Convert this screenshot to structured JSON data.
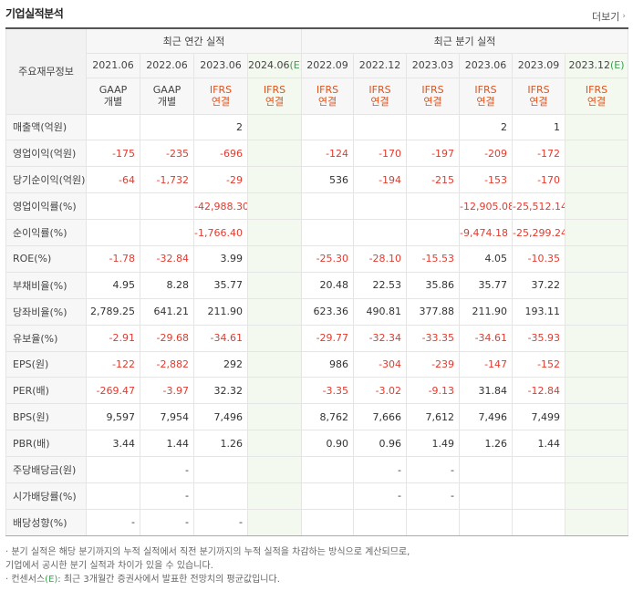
{
  "header": {
    "title": "기업실적분석",
    "more_label": "더보기"
  },
  "table": {
    "label_header": "주요재무정보",
    "annual_group": "최근 연간 실적",
    "quarter_group": "최근 분기 실적",
    "annual_years": [
      "2021.06",
      "2022.06",
      "2023.06",
      "2024.06"
    ],
    "quarter_years": [
      "2022.09",
      "2022.12",
      "2023.03",
      "2023.06",
      "2023.09",
      "2023.12"
    ],
    "estimate_mark": "(E)",
    "annual_acc": [
      [
        "GAAP",
        "개별"
      ],
      [
        "GAAP",
        "개별"
      ],
      [
        "IFRS",
        "연결"
      ],
      [
        "IFRS",
        "연결"
      ]
    ],
    "quarter_acc": [
      [
        "IFRS",
        "연결"
      ],
      [
        "IFRS",
        "연결"
      ],
      [
        "IFRS",
        "연결"
      ],
      [
        "IFRS",
        "연결"
      ],
      [
        "IFRS",
        "연결"
      ],
      [
        "IFRS",
        "연결"
      ]
    ],
    "rows": [
      {
        "label": "매출액(억원)",
        "values": [
          "",
          "",
          "2",
          "",
          "",
          "",
          "",
          "2",
          "1",
          ""
        ]
      },
      {
        "label": "영업이익(억원)",
        "values": [
          "-175",
          "-235",
          "-696",
          "",
          "-124",
          "-170",
          "-197",
          "-209",
          "-172",
          ""
        ]
      },
      {
        "label": "당기순이익(억원)",
        "values": [
          "-64",
          "-1,732",
          "-29",
          "",
          "536",
          "-194",
          "-215",
          "-153",
          "-170",
          ""
        ]
      },
      {
        "label": "영업이익률(%)",
        "values": [
          "",
          "",
          "-42,988.30",
          "",
          "",
          "",
          "",
          "-12,905.08",
          "-25,512.14",
          ""
        ]
      },
      {
        "label": "순이익률(%)",
        "values": [
          "",
          "",
          "-1,766.40",
          "",
          "",
          "",
          "",
          "-9,474.18",
          "-25,299.24",
          ""
        ]
      },
      {
        "label": "ROE(%)",
        "values": [
          "-1.78",
          "-32.84",
          "3.99",
          "",
          "-25.30",
          "-28.10",
          "-15.53",
          "4.05",
          "-10.35",
          ""
        ]
      },
      {
        "label": "부채비율(%)",
        "values": [
          "4.95",
          "8.28",
          "35.77",
          "",
          "20.48",
          "22.53",
          "35.86",
          "35.77",
          "37.22",
          ""
        ]
      },
      {
        "label": "당좌비율(%)",
        "values": [
          "2,789.25",
          "641.21",
          "211.90",
          "",
          "623.36",
          "490.81",
          "377.88",
          "211.90",
          "193.11",
          ""
        ]
      },
      {
        "label": "유보율(%)",
        "values": [
          "-2.91",
          "-29.68",
          "-34.61",
          "",
          "-29.77",
          "-32.34",
          "-33.35",
          "-34.61",
          "-35.93",
          ""
        ]
      },
      {
        "label": "EPS(원)",
        "values": [
          "-122",
          "-2,882",
          "292",
          "",
          "986",
          "-304",
          "-239",
          "-147",
          "-152",
          ""
        ]
      },
      {
        "label": "PER(배)",
        "values": [
          "-269.47",
          "-3.97",
          "32.32",
          "",
          "-3.35",
          "-3.02",
          "-9.13",
          "31.84",
          "-12.84",
          ""
        ]
      },
      {
        "label": "BPS(원)",
        "values": [
          "9,597",
          "7,954",
          "7,496",
          "",
          "8,762",
          "7,666",
          "7,612",
          "7,496",
          "7,499",
          ""
        ]
      },
      {
        "label": "PBR(배)",
        "values": [
          "3.44",
          "1.44",
          "1.26",
          "",
          "0.90",
          "0.96",
          "1.49",
          "1.26",
          "1.44",
          ""
        ]
      },
      {
        "label": "주당배당금(원)",
        "values": [
          "",
          "-",
          "",
          "",
          "",
          "-",
          "-",
          "",
          "",
          ""
        ]
      },
      {
        "label": "시가배당률(%)",
        "values": [
          "",
          "-",
          "",
          "",
          "",
          "-",
          "-",
          "",
          "",
          ""
        ]
      },
      {
        "label": "배당성향(%)",
        "values": [
          "-",
          "-",
          "-",
          "",
          "",
          "",
          "",
          "",
          "",
          ""
        ]
      }
    ]
  },
  "notes": {
    "line1": "· 분기 실적은 해당 분기까지의 누적 실적에서 직전 분기까지의 누적 실적을 차감하는 방식으로 계산되므로,",
    "line2": "  기업에서 공시한 분기 실적과 차이가 있을 수 있습니다.",
    "line3_prefix": "· 컨센서스",
    "line3_mark": "(E)",
    "line3_suffix": ": 최근 3개월간 증권사에서 발표한 전망치의 평균값입니다."
  },
  "colors": {
    "negative": "#e23b2f",
    "ifrs": "#e0531c",
    "estimate": "#3aa04f",
    "estimate_bg": "#f4f9f0"
  }
}
